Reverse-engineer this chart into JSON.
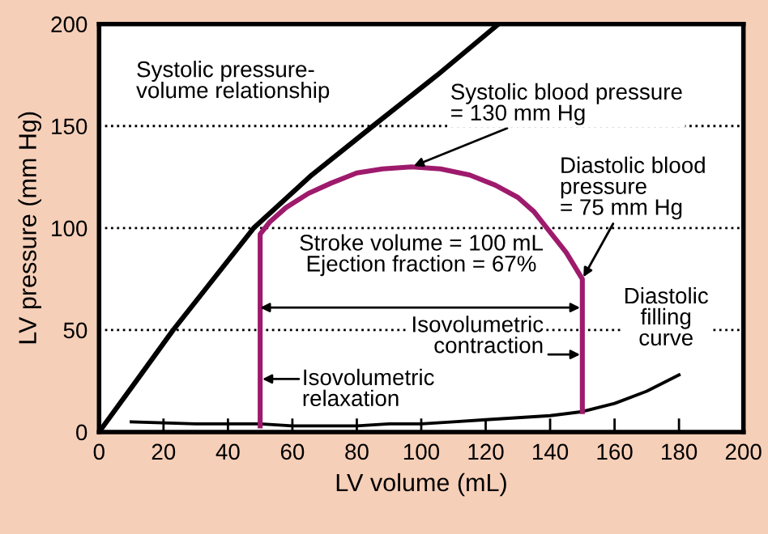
{
  "chart_data": {
    "type": "line",
    "xlabel": "LV volume (mL)",
    "ylabel": "LV pressure (mm Hg)",
    "xlim": [
      0,
      200
    ],
    "ylim": [
      0,
      200
    ],
    "xticks": [
      0,
      20,
      40,
      60,
      80,
      100,
      120,
      140,
      160,
      180,
      200
    ],
    "yticks": [
      0,
      50,
      100,
      150,
      200
    ],
    "grid": "y",
    "marker": "none",
    "series": [
      {
        "name": "Systolic pressure-\nvolume relationship",
        "color": "#000000",
        "x": [
          0,
          12,
          23,
          35,
          48,
          66,
          85,
          105,
          124
        ],
        "values": [
          0,
          26,
          50,
          74,
          100,
          126,
          150,
          175,
          200
        ]
      },
      {
        "name": "Diastolic\nfilling\ncurve",
        "color": "#000000",
        "x": [
          10,
          30,
          50,
          60,
          70,
          80,
          90,
          100,
          110,
          120,
          130,
          140,
          150,
          160,
          170,
          180
        ],
        "values": [
          5,
          4,
          4,
          3,
          3,
          3,
          4,
          4,
          5,
          6,
          7,
          8,
          10,
          14,
          20,
          28
        ]
      },
      {
        "color": "#9e1a6c",
        "x": [
          50,
          50,
          53,
          58,
          65,
          72,
          80,
          88,
          97,
          106,
          115,
          123,
          130,
          135,
          139,
          145,
          150,
          150
        ],
        "values": [
          3,
          97,
          103,
          110,
          117,
          122,
          127,
          129,
          130,
          129,
          126,
          121,
          115,
          108,
          100,
          88,
          75,
          10
        ]
      }
    ],
    "annotations": [
      {
        "text": "Systolic blood pressure\n= 130 mm Hg",
        "x": 97,
        "y": 130
      },
      {
        "text": "Diastolic blood\npressure\n= 75 mm Hg",
        "x": 150,
        "y": 75
      },
      "Stroke volume = 100 mL\nEjection fraction = 67%",
      "Isovolumetric\ncontraction",
      "Isovolumetric\nrelaxation"
    ]
  }
}
